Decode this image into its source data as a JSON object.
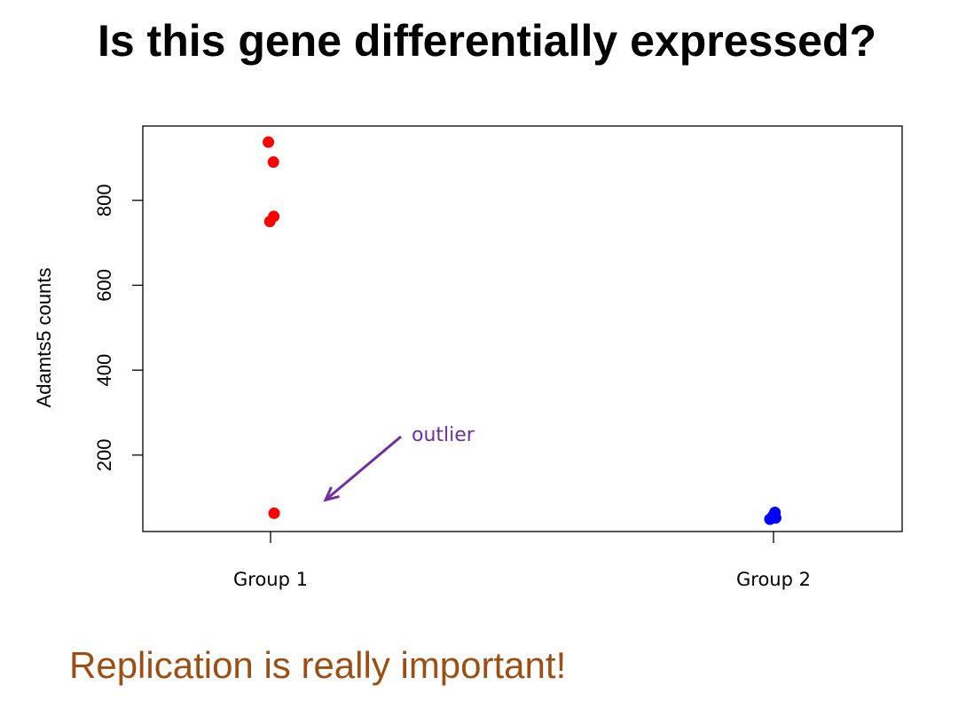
{
  "slide": {
    "title": "Is this gene differentially expressed?",
    "subtitle": "Replication is really important!",
    "subtitle_color": "#9b4f14"
  },
  "chart_data": {
    "type": "scatter",
    "title": "",
    "xlabel": "",
    "ylabel": "Adamts5  counts",
    "categories": [
      "Group 1",
      "Group 2"
    ],
    "ylim": [
      20,
      975
    ],
    "yticks": [
      200,
      400,
      600,
      800
    ],
    "grid": false,
    "legend": "none",
    "series": [
      {
        "category": "Group 1",
        "color": "#ff0000",
        "points": [
          {
            "jitter": -0.03,
            "y": 937
          },
          {
            "jitter": 0.04,
            "y": 890
          },
          {
            "jitter": -0.01,
            "y": 750
          },
          {
            "jitter": 0.045,
            "y": 762
          },
          {
            "jitter": 0.05,
            "y": 63
          }
        ]
      },
      {
        "category": "Group 2",
        "color": "#0000ff",
        "points": [
          {
            "jitter": -0.05,
            "y": 49
          },
          {
            "jitter": -0.02,
            "y": 53
          },
          {
            "jitter": -0.005,
            "y": 57
          },
          {
            "jitter": 0.02,
            "y": 65
          },
          {
            "jitter": 0.03,
            "y": 52
          }
        ]
      }
    ],
    "annotation": {
      "text": "outlier",
      "color": "#7030a0",
      "target": {
        "category": "Group 1",
        "y": 63
      }
    }
  }
}
